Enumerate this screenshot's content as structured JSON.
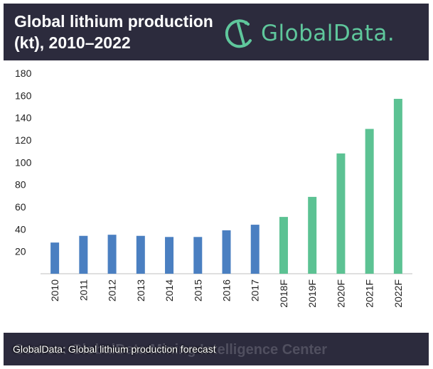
{
  "header": {
    "title": "Global lithium production (kt), 2010–2022",
    "brand": "GlobalData."
  },
  "source_text": "Source: GlobalData Mining Intelligence Center",
  "caption": "GlobalData: Global lithium production forecast",
  "colors": {
    "header_bg": "#2c2b3d",
    "brand": "#5fc79c",
    "actual": "#4a7fc1",
    "forecast": "#5cc293"
  },
  "chart_data": {
    "type": "bar",
    "title": "Global lithium production (kt), 2010–2022",
    "xlabel": "",
    "ylabel": "",
    "ylim": [
      0,
      180
    ],
    "yticks": [
      20,
      40,
      60,
      80,
      100,
      120,
      140,
      160,
      180
    ],
    "grid": false,
    "legend": "none",
    "categories": [
      "2010",
      "2011",
      "2012",
      "2013",
      "2014",
      "2015",
      "2016",
      "2017",
      "2018F",
      "2019F",
      "2020F",
      "2021F",
      "2022F"
    ],
    "values": [
      28,
      34,
      35,
      34,
      33,
      33,
      39,
      44,
      51,
      69,
      108,
      130,
      157
    ],
    "forecast_from_index": 8
  }
}
